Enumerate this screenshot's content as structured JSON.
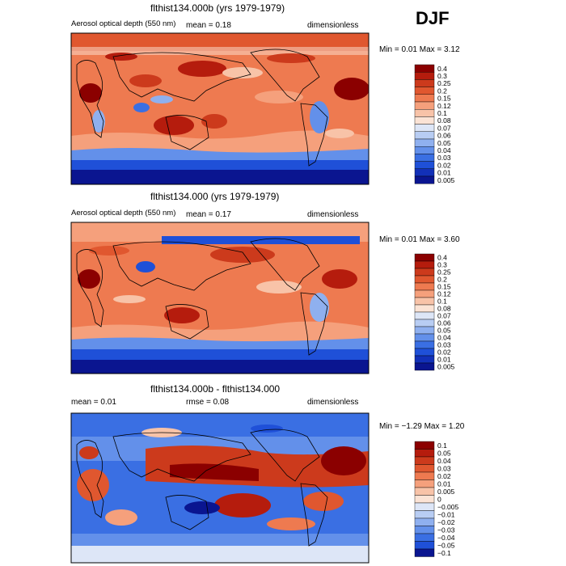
{
  "season": "DJF",
  "panels": [
    {
      "title": "flthist134.000b (yrs 1979-1979)",
      "variable": "Aerosol optical depth (550 nm)",
      "stat_text": "mean =    0.18",
      "units": "dimensionless",
      "minmax": "Min =    0.01  Max =    3.12",
      "colorbar": [
        "0.4",
        "0.3",
        "0.25",
        "0.2",
        "0.15",
        "0.12",
        "0.1",
        "0.08",
        "0.07",
        "0.06",
        "0.05",
        "0.04",
        "0.03",
        "0.02",
        "0.01",
        "0.005"
      ]
    },
    {
      "title": "flthist134.000 (yrs 1979-1979)",
      "variable": "Aerosol optical depth (550 nm)",
      "stat_text": "mean =    0.17",
      "units": "dimensionless",
      "minmax": "Min =    0.01  Max =    3.60",
      "colorbar": [
        "0.4",
        "0.3",
        "0.25",
        "0.2",
        "0.15",
        "0.12",
        "0.1",
        "0.08",
        "0.07",
        "0.06",
        "0.05",
        "0.04",
        "0.03",
        "0.02",
        "0.01",
        "0.005"
      ]
    },
    {
      "title": "flthist134.000b - flthist134.000",
      "mean_text": "mean =    0.01",
      "rmse_text": "rmse =    0.08",
      "units": "dimensionless",
      "minmax": "Min =  −1.29  Max =    1.20",
      "colorbar": [
        "0.1",
        "0.05",
        "0.04",
        "0.03",
        "0.02",
        "0.01",
        "0.005",
        "0",
        "−0.005",
        "−0.01",
        "−0.02",
        "−0.03",
        "−0.04",
        "−0.05",
        "−0.1"
      ]
    }
  ],
  "colors": {
    "seq": [
      "#8b0000",
      "#b51c0d",
      "#cc3a1c",
      "#e0572f",
      "#ee7a50",
      "#f5a07c",
      "#f8c3a8",
      "#fbe3d5",
      "#dde6f7",
      "#b8cdf3",
      "#8fb0ef",
      "#6390ea",
      "#3a6fe3",
      "#1f50d8",
      "#1230b8",
      "#0a1590"
    ],
    "div": [
      "#8b0000",
      "#b51c0d",
      "#cc3a1c",
      "#e0572f",
      "#ee7a50",
      "#f5a07c",
      "#f8c3a8",
      "#fbe3d5",
      "#dde6f7",
      "#b8cdf3",
      "#8fb0ef",
      "#6390ea",
      "#3a6fe3",
      "#1f50d8",
      "#0a1590"
    ]
  }
}
